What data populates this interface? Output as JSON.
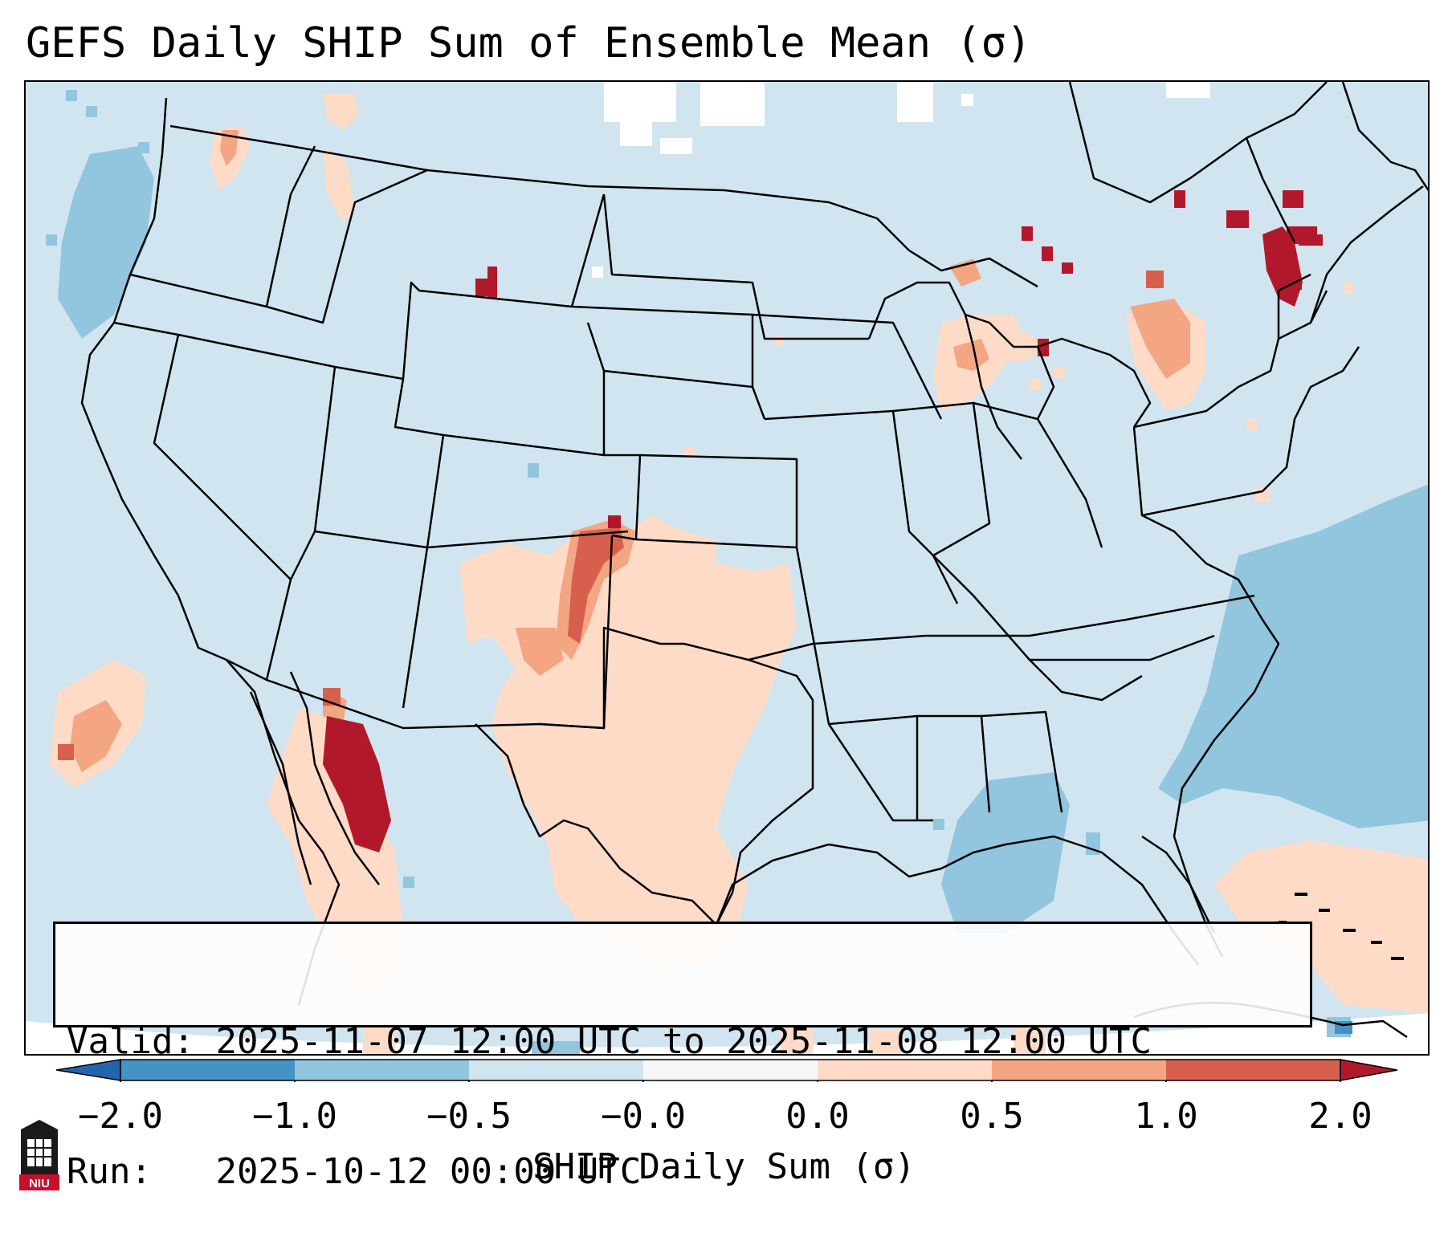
{
  "header": {
    "title": "GEFS Daily SHIP Sum of Ensemble Mean (σ)"
  },
  "info": {
    "valid_label": "Valid:",
    "valid_value": "2025-11-07 12:00 UTC to 2025-11-08 12:00 UTC",
    "run_label": "Run:",
    "run_value": "2025-10-12 00:00 UTC"
  },
  "colorbar": {
    "label": "SHIP Daily Sum (σ)",
    "ticks": [
      "−2.0",
      "−1.0",
      "−0.5",
      "−0.0",
      "0.0",
      "0.5",
      "1.0",
      "2.0"
    ],
    "bins": [
      {
        "range": "< -2.0",
        "color": "#2166ac"
      },
      {
        "range": "-2.0 to -1.0",
        "color": "#4393c3"
      },
      {
        "range": "-1.0 to -0.5",
        "color": "#92c5de"
      },
      {
        "range": "-0.5 to -0.0",
        "color": "#d1e5f0"
      },
      {
        "range": "-0.0 to 0.0",
        "color": "#f7f7f7"
      },
      {
        "range": "0.0 to 0.5",
        "color": "#fddbc7"
      },
      {
        "range": "0.5 to 1.0",
        "color": "#f4a582"
      },
      {
        "range": "1.0 to 2.0",
        "color": "#d6604d"
      },
      {
        "range": "> 2.0",
        "color": "#b2182b"
      }
    ]
  },
  "logo": {
    "text": "NIU"
  },
  "colors": {
    "background_field": "#d1e5f0",
    "state_lines": "#000000"
  }
}
